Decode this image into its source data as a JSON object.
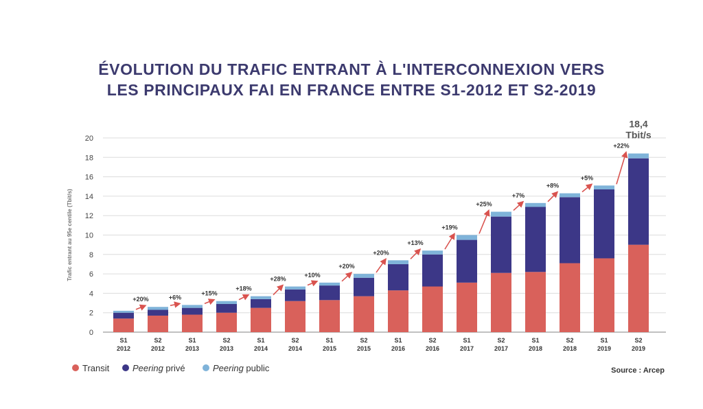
{
  "title": {
    "line1": "ÉVOLUTION DU TRAFIC ENTRANT À L'INTERCONNEXION VERS",
    "line2": "LES PRINCIPAUX FAI EN FRANCE ENTRE S1-2012 ET S2-2019"
  },
  "source": "Source : Arcep",
  "colors": {
    "transit": "#d9615b",
    "peering_prive": "#3c3787",
    "peering_public": "#7fb3d9",
    "arrow": "#d9534f",
    "grid": "#dcdcdc",
    "title": "#3c3a6e"
  },
  "legend": [
    {
      "label": "Transit",
      "italic_part": "",
      "series": "transit"
    },
    {
      "label": " privé",
      "italic_part": "Peering",
      "series": "peering_prive"
    },
    {
      "label": " public",
      "italic_part": "Peering",
      "series": "peering_public"
    }
  ],
  "chart_data": {
    "type": "bar",
    "stacked": true,
    "ylabel": "Trafic entrant au 95e centile (Tbit/s)",
    "ylim": [
      0,
      20
    ],
    "yticks": [
      0,
      2,
      4,
      6,
      8,
      10,
      12,
      14,
      16,
      18,
      20
    ],
    "grid": true,
    "legend_position": "bottom-left",
    "categories": [
      [
        "S1",
        "2012"
      ],
      [
        "S2",
        "2012"
      ],
      [
        "S1",
        "2013"
      ],
      [
        "S2",
        "2013"
      ],
      [
        "S1",
        "2014"
      ],
      [
        "S2",
        "2014"
      ],
      [
        "S1",
        "2015"
      ],
      [
        "S2",
        "2015"
      ],
      [
        "S1",
        "2016"
      ],
      [
        "S2",
        "2016"
      ],
      [
        "S1",
        "2017"
      ],
      [
        "S2",
        "2017"
      ],
      [
        "S1",
        "2018"
      ],
      [
        "S2",
        "2018"
      ],
      [
        "S1",
        "2019"
      ],
      [
        "S2",
        "2019"
      ]
    ],
    "series": [
      {
        "name": "Transit",
        "key": "transit",
        "values": [
          1.4,
          1.7,
          1.8,
          2.0,
          2.5,
          3.2,
          3.3,
          3.7,
          4.3,
          4.7,
          5.1,
          6.1,
          6.2,
          7.1,
          7.6,
          9.0
        ]
      },
      {
        "name": "Peering privé",
        "key": "peering_prive",
        "values": [
          0.6,
          0.6,
          0.7,
          0.9,
          0.9,
          1.2,
          1.5,
          1.9,
          2.7,
          3.3,
          4.4,
          5.8,
          6.7,
          6.8,
          7.1,
          8.9
        ]
      },
      {
        "name": "Peering public",
        "key": "peering_public",
        "values": [
          0.2,
          0.3,
          0.3,
          0.3,
          0.3,
          0.3,
          0.3,
          0.4,
          0.4,
          0.4,
          0.5,
          0.5,
          0.4,
          0.4,
          0.4,
          0.5
        ]
      }
    ],
    "growth_labels": [
      "+20%",
      "+6%",
      "+15%",
      "+18%",
      "+28%",
      "+10%",
      "+20%",
      "+20%",
      "+13%",
      "+19%",
      "+25%",
      "+7%",
      "+8%",
      "+5%",
      "+22%"
    ],
    "final_total": {
      "value": "18,4",
      "unit": "Tbit/s"
    }
  }
}
